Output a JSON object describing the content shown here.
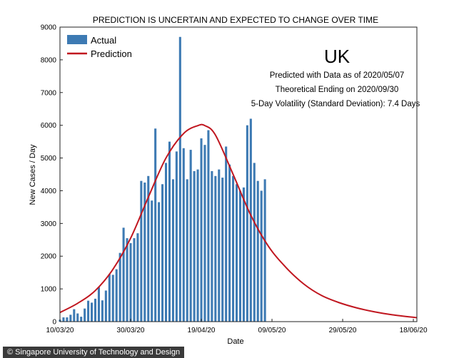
{
  "chart_data": {
    "type": "bar+line",
    "title": "PREDICTION IS UNCERTAIN AND EXPECTED TO CHANGE OVER TIME",
    "xlabel": "Date",
    "ylabel": "New Cases / Day",
    "ylim": [
      0,
      9000
    ],
    "yticks": [
      0,
      1000,
      2000,
      3000,
      4000,
      5000,
      6000,
      7000,
      8000,
      9000
    ],
    "xlim": [
      "2020-03-10",
      "2020-06-19"
    ],
    "xticks": [
      "10/03/20",
      "30/03/20",
      "19/04/20",
      "09/05/20",
      "29/05/20",
      "18/06/20"
    ],
    "grid": false,
    "legend_position": "top-left",
    "bar_color": "#3d7ab3",
    "line_color": "#c0161f",
    "annotation": {
      "country": "UK",
      "lines": [
        "Predicted with Data as of 2020/05/07",
        "Theoretical Ending on 2020/09/30",
        "5-Day Volatility (Standard Deviation): 7.4 Days"
      ]
    },
    "series": [
      {
        "name": "Actual",
        "type": "bar",
        "x": [
          "2020-03-10",
          "2020-03-11",
          "2020-03-12",
          "2020-03-13",
          "2020-03-14",
          "2020-03-15",
          "2020-03-16",
          "2020-03-17",
          "2020-03-18",
          "2020-03-19",
          "2020-03-20",
          "2020-03-21",
          "2020-03-22",
          "2020-03-23",
          "2020-03-24",
          "2020-03-25",
          "2020-03-26",
          "2020-03-27",
          "2020-03-28",
          "2020-03-29",
          "2020-03-30",
          "2020-03-31",
          "2020-04-01",
          "2020-04-02",
          "2020-04-03",
          "2020-04-04",
          "2020-04-05",
          "2020-04-06",
          "2020-04-07",
          "2020-04-08",
          "2020-04-09",
          "2020-04-10",
          "2020-04-11",
          "2020-04-12",
          "2020-04-13",
          "2020-04-14",
          "2020-04-15",
          "2020-04-16",
          "2020-04-17",
          "2020-04-18",
          "2020-04-19",
          "2020-04-20",
          "2020-04-21",
          "2020-04-22",
          "2020-04-23",
          "2020-04-24",
          "2020-04-25",
          "2020-04-26",
          "2020-04-27",
          "2020-04-28",
          "2020-04-29",
          "2020-04-30",
          "2020-05-01",
          "2020-05-02",
          "2020-05-03",
          "2020-05-04",
          "2020-05-05",
          "2020-05-06",
          "2020-05-07"
        ],
        "values": [
          60,
          130,
          130,
          210,
          380,
          250,
          150,
          400,
          640,
          580,
          700,
          1050,
          650,
          950,
          1450,
          1430,
          1600,
          2100,
          2870,
          2550,
          2400,
          2550,
          2700,
          4300,
          4250,
          4450,
          3700,
          5900,
          3650,
          4200,
          4850,
          5500,
          4350,
          5200,
          8700,
          5300,
          4350,
          5250,
          4600,
          4650,
          5600,
          5400,
          5850,
          4600,
          4450,
          4650,
          4400,
          5350,
          4800,
          4450,
          4200,
          4000,
          4100,
          6000,
          6200,
          4850,
          4300,
          4000,
          4350
        ]
      },
      {
        "name": "Prediction",
        "type": "line",
        "x": [
          "2020-03-10",
          "2020-03-15",
          "2020-03-20",
          "2020-03-25",
          "2020-03-30",
          "2020-04-04",
          "2020-04-09",
          "2020-04-14",
          "2020-04-18",
          "2020-04-20",
          "2020-04-23",
          "2020-04-28",
          "2020-05-03",
          "2020-05-08",
          "2020-05-13",
          "2020-05-18",
          "2020-05-23",
          "2020-05-28",
          "2020-06-02",
          "2020-06-07",
          "2020-06-12",
          "2020-06-19"
        ],
        "values": [
          280,
          560,
          950,
          1600,
          2550,
          3800,
          5000,
          5750,
          5990,
          5990,
          5700,
          4500,
          3250,
          2300,
          1650,
          1150,
          800,
          580,
          420,
          300,
          210,
          120
        ]
      }
    ]
  },
  "source_credit": "© Singapore University of Technology and Design"
}
